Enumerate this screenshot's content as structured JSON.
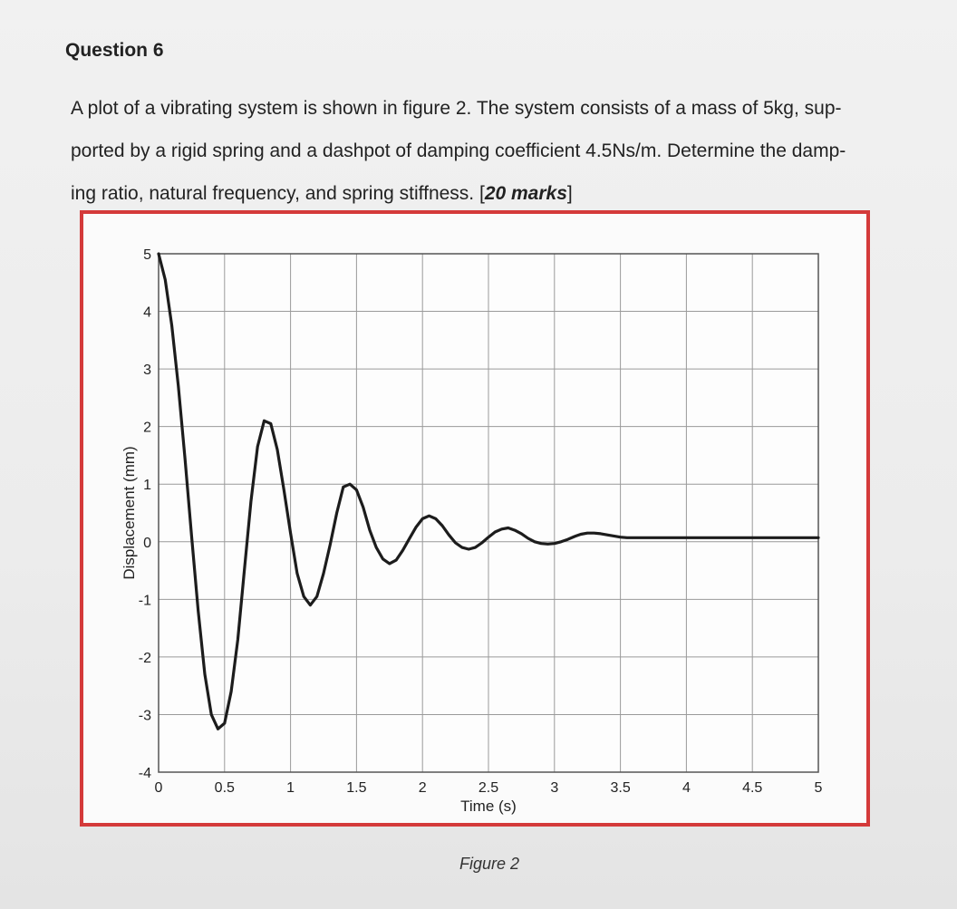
{
  "question": {
    "title": "Question 6",
    "line1": "A plot of a vibrating system is shown in figure 2. The system consists of a mass of 5kg, sup-",
    "line2": "ported by a rigid spring and a dashpot of damping coefficient 4.5Ns/m. Determine the damp-",
    "line3_prefix": "ing ratio, natural frequency, and spring stiffness. [",
    "line3_marks": "20 marks",
    "line3_suffix": "]"
  },
  "figure": {
    "caption": "Figure 2"
  },
  "chart_data": {
    "type": "line",
    "title": "",
    "xlabel": "Time (s)",
    "ylabel": "Displacement (mm)",
    "xlim": [
      0,
      5
    ],
    "ylim": [
      -4,
      5
    ],
    "x_ticks": [
      0,
      0.5,
      1,
      1.5,
      2,
      2.5,
      3,
      3.5,
      4,
      4.5,
      5
    ],
    "x_tick_labels": [
      "0",
      "0.5",
      "1",
      "1.5",
      "2",
      "2.5",
      "3",
      "3.5",
      "4",
      "4.5",
      "5"
    ],
    "y_ticks": [
      -4,
      -3,
      -2,
      -1,
      0,
      1,
      2,
      3,
      4,
      5
    ],
    "y_tick_labels": [
      "-4",
      "-3",
      "-2",
      "-1",
      "0",
      "1",
      "2",
      "3",
      "4",
      "5"
    ],
    "grid": true,
    "series": [
      {
        "x": [
          0,
          0.05,
          0.1,
          0.15,
          0.2,
          0.25,
          0.3,
          0.35,
          0.4,
          0.45,
          0.5,
          0.55,
          0.6,
          0.65,
          0.7,
          0.75,
          0.8,
          0.85,
          0.9,
          0.95,
          1.0,
          1.05,
          1.1,
          1.15,
          1.2,
          1.25,
          1.3,
          1.35,
          1.4,
          1.45,
          1.5,
          1.55,
          1.6,
          1.65,
          1.7,
          1.75,
          1.8,
          1.85,
          1.9,
          1.95,
          2.0,
          2.05,
          2.1,
          2.15,
          2.2,
          2.25,
          2.3,
          2.35,
          2.4,
          2.45,
          2.5,
          2.55,
          2.6,
          2.65,
          2.7,
          2.75,
          2.8,
          2.85,
          2.9,
          2.95,
          3.0,
          3.05,
          3.1,
          3.15,
          3.2,
          3.25,
          3.3,
          3.35,
          3.4,
          3.45,
          3.5,
          3.55,
          3.6,
          3.65,
          3.7,
          3.75,
          3.8,
          3.85,
          3.9,
          3.95,
          4.0,
          4.05,
          4.1,
          4.15,
          4.2,
          4.25,
          4.3,
          4.35,
          4.4,
          4.45,
          4.5,
          4.55,
          4.6,
          4.65,
          4.7,
          4.75,
          4.8,
          4.85,
          4.9,
          4.95,
          5.0
        ],
        "y": [
          5.0,
          4.55,
          3.75,
          2.7,
          1.45,
          0.1,
          -1.2,
          -2.3,
          -3.0,
          -3.25,
          -3.15,
          -2.6,
          -1.7,
          -0.5,
          0.7,
          1.65,
          2.1,
          2.05,
          1.6,
          0.9,
          0.15,
          -0.55,
          -0.95,
          -1.1,
          -0.95,
          -0.55,
          -0.05,
          0.5,
          0.95,
          1.0,
          0.9,
          0.6,
          0.2,
          -0.1,
          -0.3,
          -0.38,
          -0.32,
          -0.15,
          0.05,
          0.25,
          0.4,
          0.45,
          0.4,
          0.28,
          0.12,
          -0.02,
          -0.1,
          -0.13,
          -0.1,
          -0.02,
          0.08,
          0.17,
          0.22,
          0.24,
          0.2,
          0.14,
          0.06,
          0.0,
          -0.03,
          -0.04,
          -0.03,
          0.0,
          0.04,
          0.09,
          0.13,
          0.15,
          0.15,
          0.14,
          0.12,
          0.1,
          0.08,
          0.07,
          0.07,
          0.07,
          0.07,
          0.07,
          0.07,
          0.07,
          0.07,
          0.07,
          0.07,
          0.07,
          0.07,
          0.07,
          0.07,
          0.07,
          0.07,
          0.07,
          0.07,
          0.07,
          0.07,
          0.07,
          0.07,
          0.07,
          0.07,
          0.07,
          0.07,
          0.07,
          0.07,
          0.07,
          0.07
        ]
      }
    ]
  }
}
